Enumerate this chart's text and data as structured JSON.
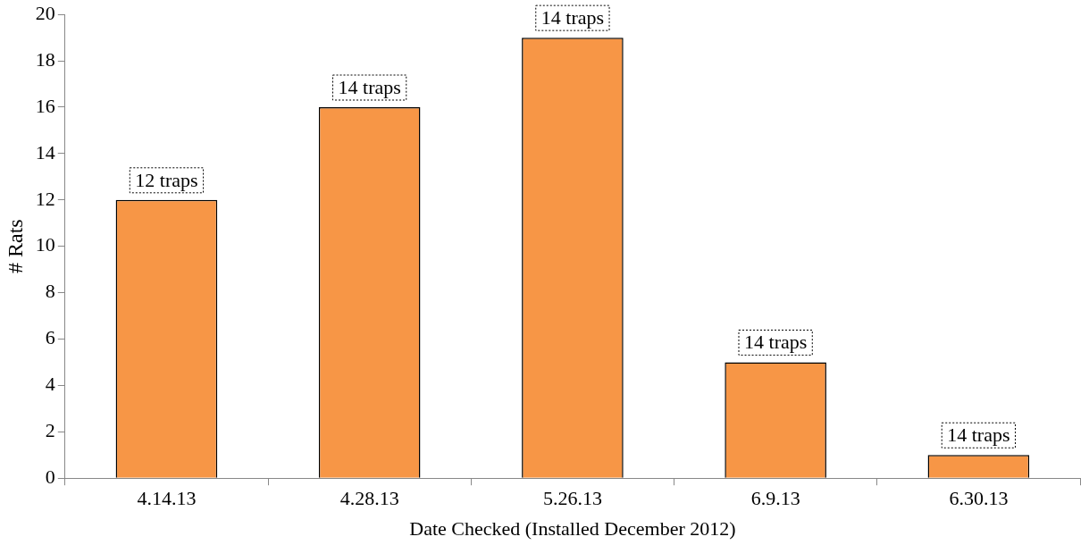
{
  "chart_data": {
    "type": "bar",
    "xlabel": "Date Checked (Installed December 2012)",
    "ylabel": "# Rats",
    "categories": [
      "4.14.13",
      "4.28.13",
      "5.26.13",
      "6.9.13",
      "6.30.13"
    ],
    "values": [
      12,
      16,
      19,
      5,
      1
    ],
    "color": "#f79646",
    "annotations": [
      {
        "text": "12 traps",
        "x": "4.14.13",
        "y": 12
      },
      {
        "text": "14 traps",
        "x": "4.28.13",
        "y": 16
      },
      {
        "text": "14 traps",
        "x": "5.26.13",
        "y": 19
      },
      {
        "text": "14 traps",
        "x": "6.9.13",
        "y": 5
      },
      {
        "text": "14 traps",
        "x": "6.30.13",
        "y": 1
      }
    ],
    "ylim": [
      0,
      20
    ],
    "yticks": [
      0,
      2,
      4,
      6,
      8,
      10,
      12,
      14,
      16,
      18,
      20
    ],
    "grid": false,
    "legend": false
  }
}
